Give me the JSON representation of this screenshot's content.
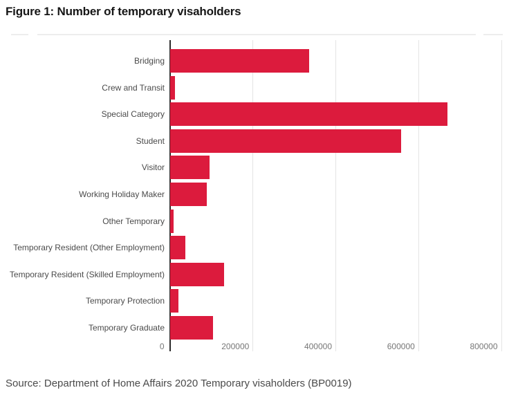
{
  "header": {
    "title": "Figure 1: Number of temporary visaholders"
  },
  "footer": {
    "source": "Source: Department of Home Affairs 2020 Temporary visaholders (BP0019)"
  },
  "colors": {
    "bar": "#dc1b3d",
    "axis_line": "#2b2b2b",
    "grid_line": "#e4e4e4",
    "category_label": "#4a4a4a",
    "tick_label": "#767676",
    "title_text": "#161616",
    "divider": "#ededed",
    "background": "#ffffff"
  },
  "chart_data": {
    "type": "bar",
    "orientation": "horizontal",
    "title": "Figure 1: Number of temporary visaholders",
    "xlabel": "",
    "ylabel": "",
    "categories": [
      "Bridging",
      "Crew and Transit",
      "Special Category",
      "Student",
      "Visitor",
      "Working Holiday Maker",
      "Other Temporary",
      "Temporary Resident (Other Employment)",
      "Temporary Resident (Skilled Employment)",
      "Temporary Protection",
      "Temporary Graduate"
    ],
    "values": [
      335000,
      11000,
      670000,
      557000,
      95000,
      89000,
      8000,
      36000,
      131000,
      20000,
      103000
    ],
    "xlim": [
      0,
      800000
    ],
    "x_ticks": [
      0,
      200000,
      400000,
      600000,
      800000
    ],
    "x_tick_labels": [
      "0",
      "200000",
      "400000",
      "600000",
      "800000"
    ],
    "grid": "vertical-only",
    "legend": "none",
    "bar_color": "#dc1b3d",
    "source": "Source: Department of Home Affairs 2020 Temporary visaholders (BP0019)"
  }
}
